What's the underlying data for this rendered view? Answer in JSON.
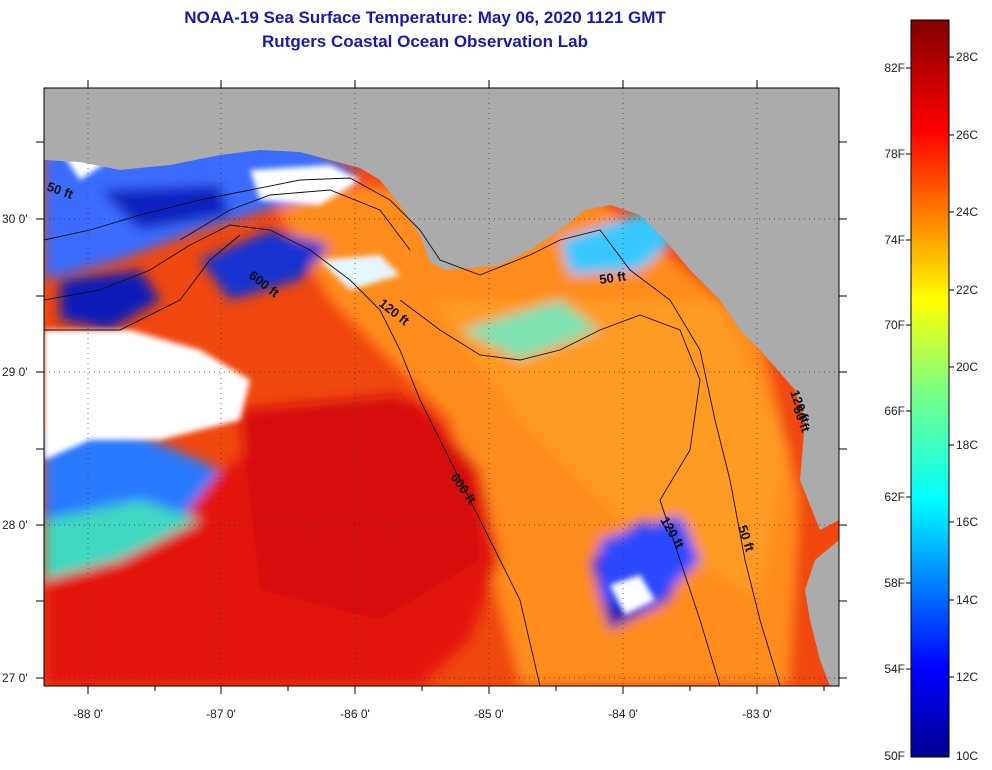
{
  "title": "NOAA-19 Sea Surface Temperature:  May 06, 2020 1121 GMT",
  "subtitle": "Rutgers Coastal Ocean Observation Lab",
  "map": {
    "lon_labels": [
      "-88 0'",
      "-87 0'",
      "-86 0'",
      "-85 0'",
      "-84 0'",
      "-83 0'"
    ],
    "lat_labels": [
      "30 0'",
      "29 0'",
      "28 0'",
      "27 0'"
    ],
    "contour_labels": [
      "600 ft",
      "120 ft",
      "50 ft",
      "600 ft",
      "50 ft",
      "120 ft",
      "50 ft",
      "120 ft",
      "50 ft"
    ]
  },
  "colorbar": {
    "f_labels": [
      "82F",
      "78F",
      "74F",
      "70F",
      "66F",
      "62F",
      "58F",
      "54F",
      "50F"
    ],
    "c_labels": [
      "28C",
      "26C",
      "24C",
      "22C",
      "20C",
      "18C",
      "16C",
      "14C",
      "12C",
      "10C"
    ],
    "range_c": [
      10,
      29
    ]
  },
  "colors": {
    "land": "#ababab",
    "cloud": "#ffffff",
    "title": "#1a1aa6"
  }
}
